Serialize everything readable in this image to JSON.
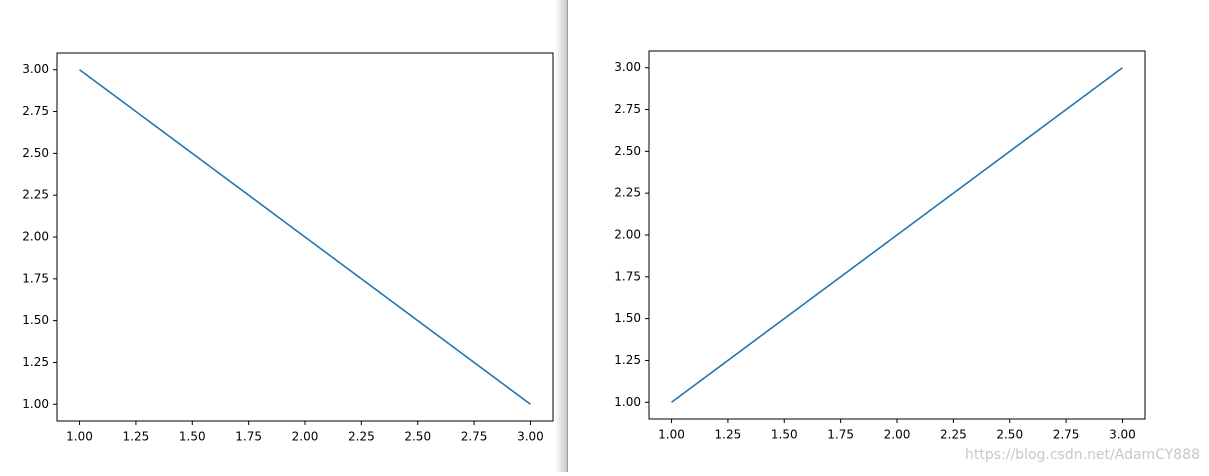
{
  "chart_data": [
    {
      "type": "line",
      "x": [
        1,
        2,
        3
      ],
      "series": [
        {
          "color": "#1f77b4",
          "values": [
            3,
            2,
            1
          ]
        }
      ],
      "xlim": [
        0.9,
        3.1
      ],
      "ylim": [
        0.9,
        3.1
      ],
      "xticks": [
        {
          "value": 1,
          "label": "1.00"
        },
        1.25,
        {
          "value": 1.5,
          "label": "1.50"
        },
        1.75,
        {
          "value": 2,
          "label": "2.00"
        },
        2.25,
        {
          "value": 2.5,
          "label": "2.50"
        },
        2.75,
        {
          "value": 3,
          "label": "3.00"
        }
      ],
      "yticks": [
        {
          "value": 1,
          "label": "1.00"
        },
        1.25,
        {
          "value": 1.5,
          "label": "1.50"
        },
        1.75,
        {
          "value": 2,
          "label": "2.00"
        },
        2.25,
        {
          "value": 2.5,
          "label": "2.50"
        },
        2.75,
        {
          "value": 3,
          "label": "3.00"
        }
      ]
    },
    {
      "type": "line",
      "x": [
        1,
        2,
        3
      ],
      "series": [
        {
          "color": "#1f77b4",
          "values": [
            1,
            2,
            3
          ]
        }
      ],
      "xlim": [
        0.9,
        3.1
      ],
      "ylim": [
        0.9,
        3.1
      ],
      "xticks": [
        {
          "value": 1,
          "label": "1.00"
        },
        1.25,
        {
          "value": 1.5,
          "label": "1.50"
        },
        1.75,
        {
          "value": 2,
          "label": "2.00"
        },
        2.25,
        {
          "value": 2.5,
          "label": "2.50"
        },
        2.75,
        {
          "value": 3,
          "label": "3.00"
        }
      ],
      "yticks": [
        {
          "value": 1,
          "label": "1.00"
        },
        1.25,
        {
          "value": 1.5,
          "label": "1.50"
        },
        1.75,
        {
          "value": 2,
          "label": "2.00"
        },
        2.25,
        {
          "value": 2.5,
          "label": "2.50"
        },
        2.75,
        {
          "value": 3,
          "label": "3.00"
        }
      ]
    }
  ],
  "watermark": "https://blog.csdn.net/AdamCY888"
}
